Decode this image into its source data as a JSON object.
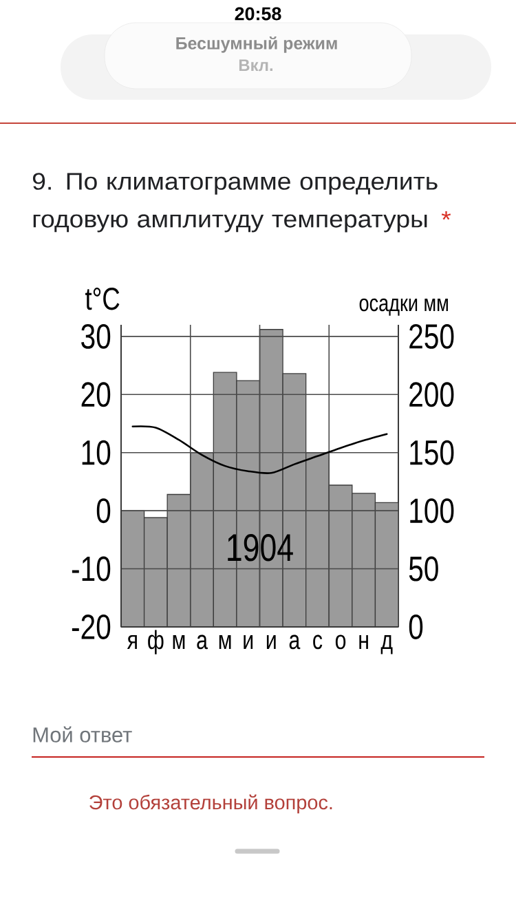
{
  "chart_data": {
    "type": "bar",
    "title": "9. По климатограмме определить годовую амплитуду температуры",
    "ylabel": "t°C",
    "y2label": "осадки мм",
    "categories": [
      "я",
      "ф",
      "м",
      "а",
      "м",
      "и",
      "и",
      "а",
      "с",
      "о",
      "н",
      "д"
    ],
    "series": [
      {
        "axis": "y2",
        "color": "#9b9b9b",
        "values": [
          100,
          94,
          114,
          150,
          219,
          212,
          256,
          218,
          150,
          122,
          115,
          107
        ]
      },
      {
        "type": "line",
        "axis": "y",
        "color": "#000000",
        "values": [
          14.5,
          14.3,
          12.2,
          9.6,
          7.7,
          6.8,
          6.5,
          8.0,
          9.4,
          10.8,
          12.1,
          13.2
        ]
      }
    ],
    "ylim": [
      -20,
      32
    ],
    "yticks": [
      -20,
      -10,
      0,
      10,
      20,
      30
    ],
    "y2lim": [
      0,
      260
    ],
    "y2ticks": [
      0,
      50,
      100,
      150,
      200,
      250
    ],
    "grid": true,
    "annotations": [
      "1904",
      "*",
      "20:58",
      "Бесшумный режим",
      "Вкл.",
      "Мой ответ",
      "Это обязательный вопрос."
    ]
  }
}
